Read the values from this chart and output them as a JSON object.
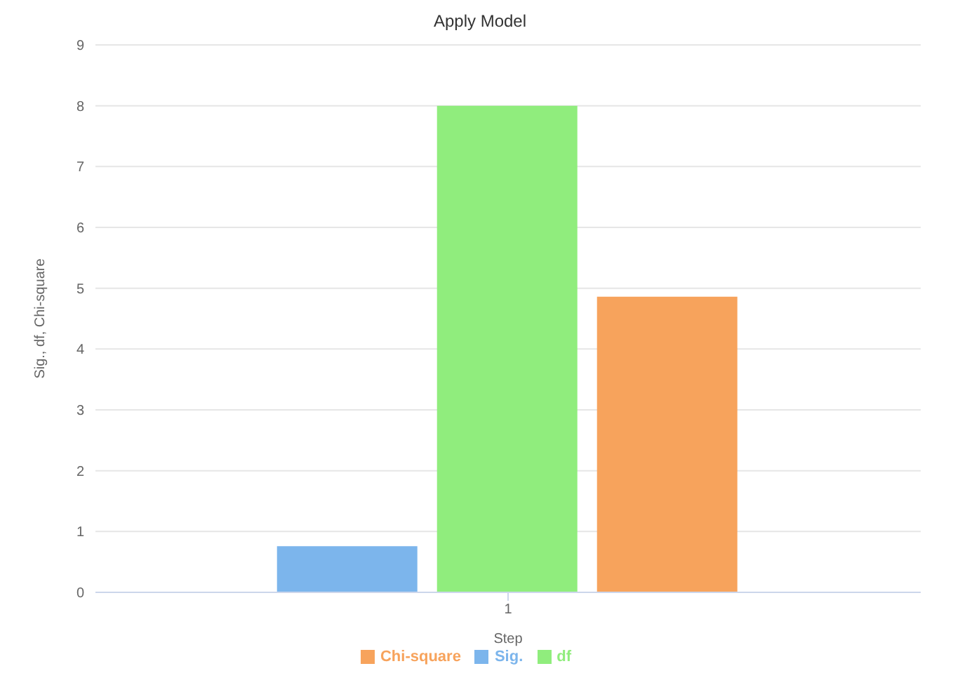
{
  "chart_data": {
    "type": "bar",
    "title": "Apply Model",
    "xlabel": "Step",
    "ylabel": "Sig., df, Chi-square",
    "categories": [
      "1"
    ],
    "series": [
      {
        "name": "Sig.",
        "color": "#7cb5ec",
        "values": [
          0.76
        ]
      },
      {
        "name": "df",
        "color": "#90ed7d",
        "values": [
          8
        ]
      },
      {
        "name": "Chi-square",
        "color": "#f7a35c",
        "values": [
          4.86
        ]
      }
    ],
    "ylim": [
      0,
      9
    ],
    "yticks": [
      0,
      1,
      2,
      3,
      4,
      5,
      6,
      7,
      8,
      9
    ],
    "grid": "y",
    "legend": "bottom"
  }
}
